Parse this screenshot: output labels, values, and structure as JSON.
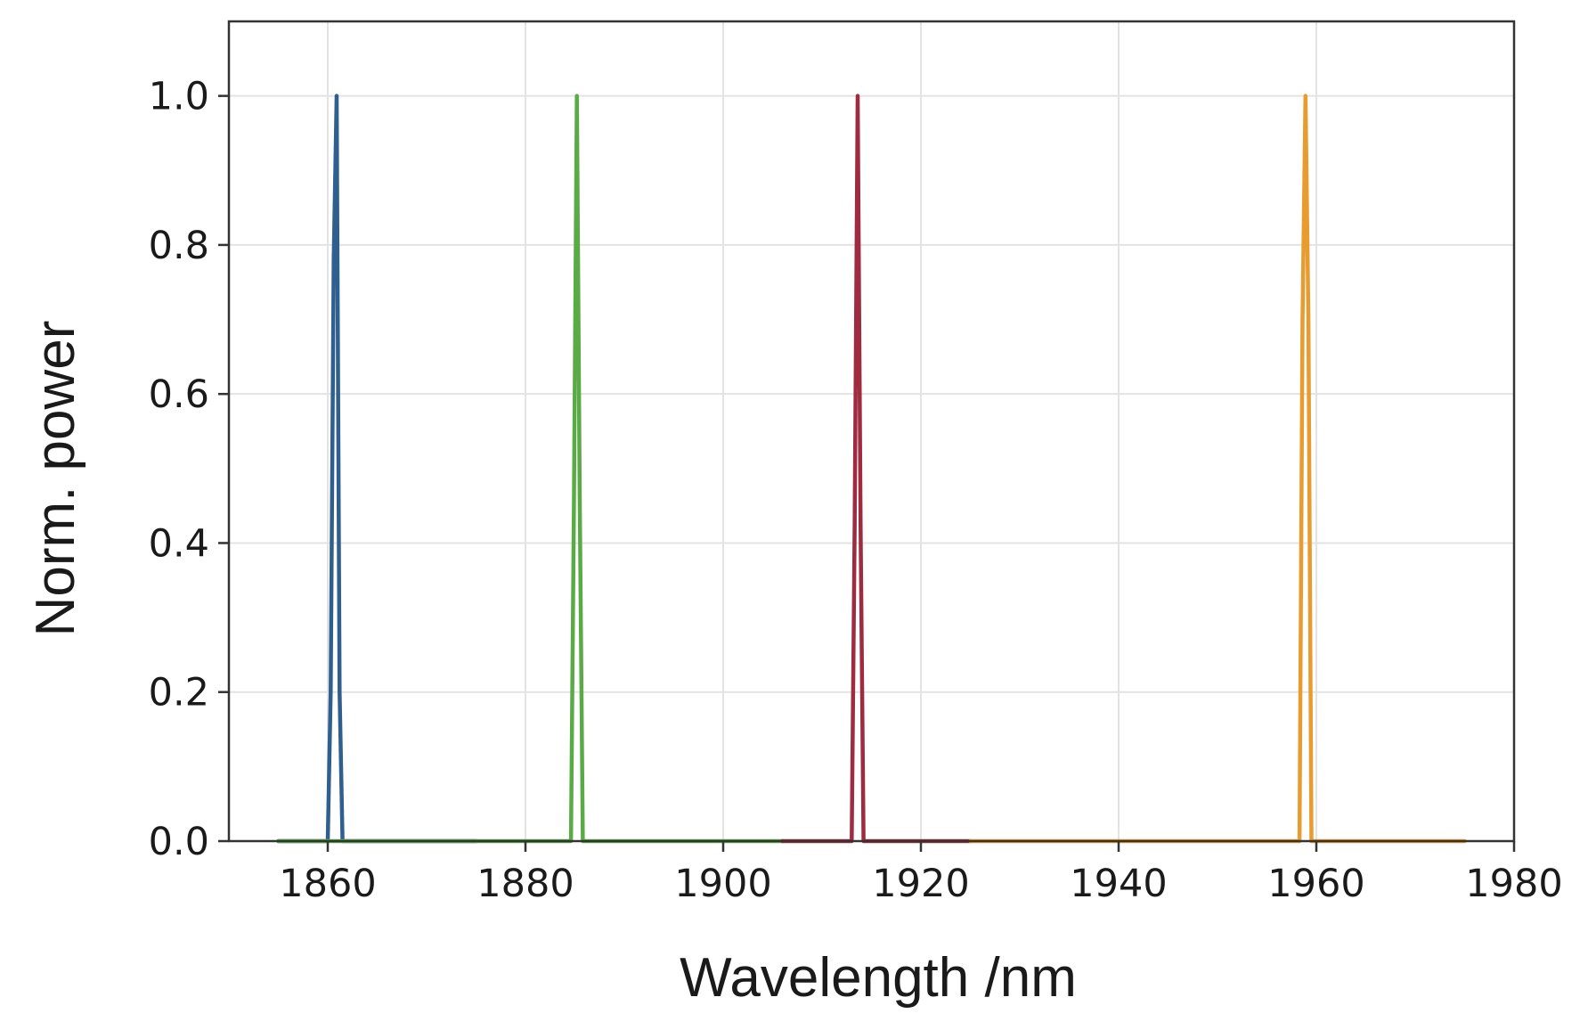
{
  "chart_data": {
    "type": "line",
    "title": "",
    "xlabel": "Wavelength /nm",
    "ylabel": "Norm. power",
    "xlim": [
      1850,
      1980
    ],
    "ylim": [
      0,
      1.1
    ],
    "grid": true,
    "legend": "none",
    "xticks": [
      1860,
      1880,
      1900,
      1920,
      1940,
      1960,
      1980
    ],
    "xtick_labels": [
      "1860",
      "1880",
      "1900",
      "1920",
      "1940",
      "1960",
      "1980"
    ],
    "yticks": [
      0.0,
      0.2,
      0.4,
      0.6,
      0.8,
      1.0
    ],
    "ytick_labels": [
      "0.0",
      "0.2",
      "0.4",
      "0.6",
      "0.8",
      "1.0"
    ],
    "series": [
      {
        "color": "#2f5f8f",
        "x": [
          1855,
          1860.0,
          1860.3,
          1860.6,
          1860.9,
          1861.2,
          1861.5,
          1875
        ],
        "y": [
          0.0,
          0.0,
          0.2,
          0.78,
          1.0,
          0.2,
          0.0,
          0.0
        ]
      },
      {
        "color": "#5aab46",
        "x": [
          1855,
          1884.6,
          1884.9,
          1885.2,
          1885.5,
          1885.8,
          1906
        ],
        "y": [
          0.0,
          0.0,
          0.45,
          1.0,
          0.45,
          0.0,
          0.0
        ]
      },
      {
        "color": "#9e2b40",
        "x": [
          1906,
          1913.0,
          1913.3,
          1913.6,
          1913.9,
          1914.2,
          1925
        ],
        "y": [
          0.0,
          0.0,
          0.42,
          1.0,
          0.42,
          0.0,
          0.0
        ]
      },
      {
        "color": "#e89b2e",
        "x": [
          1925,
          1958.3,
          1958.6,
          1958.9,
          1959.2,
          1959.5,
          1975
        ],
        "y": [
          0.0,
          0.0,
          0.7,
          1.0,
          0.7,
          0.0,
          0.0
        ]
      }
    ]
  }
}
